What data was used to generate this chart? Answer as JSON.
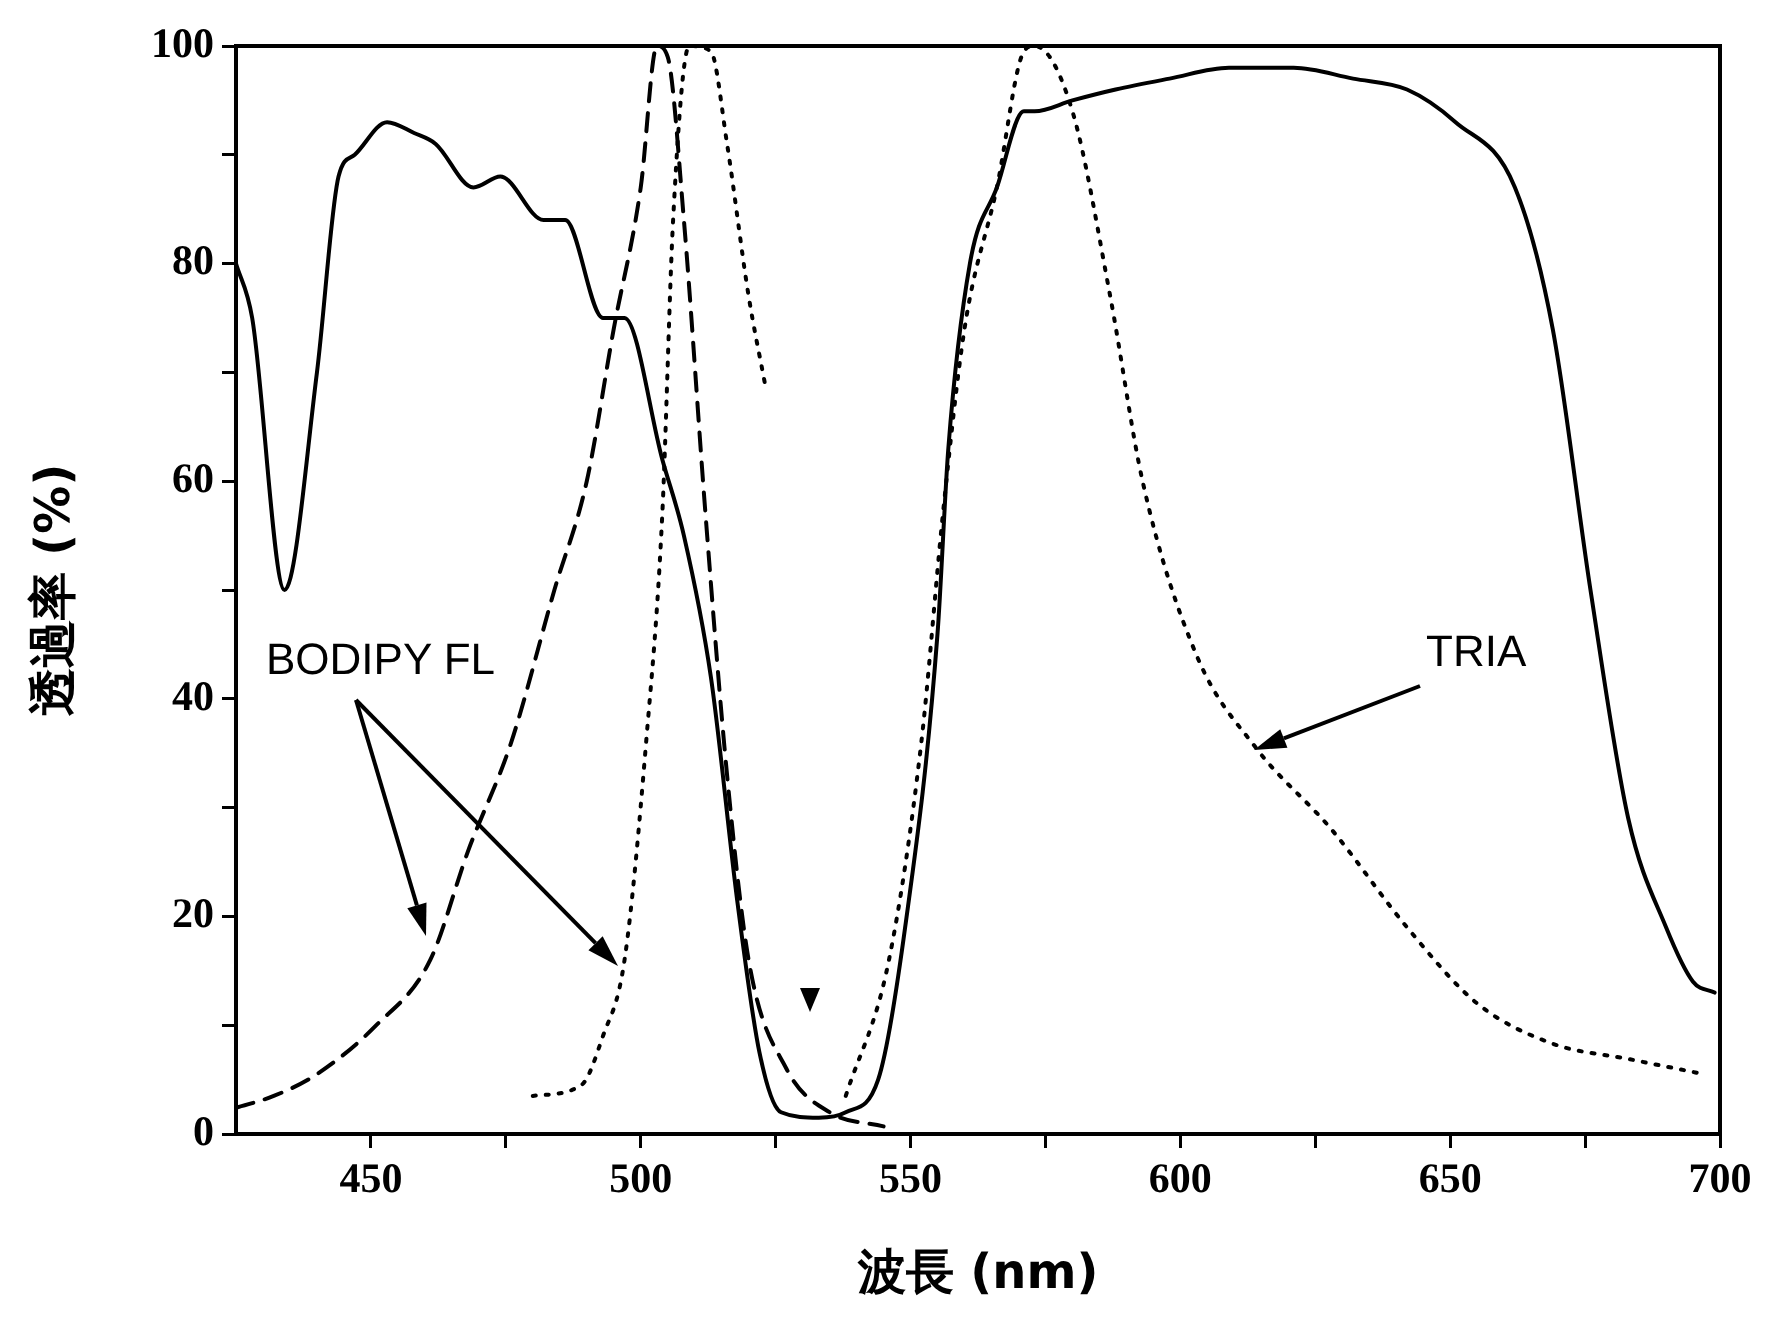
{
  "chart_data": {
    "type": "line",
    "xlabel": "波長 (nm)",
    "ylabel": "透過率 (%)",
    "xlim": [
      425,
      700
    ],
    "ylim": [
      0,
      100
    ],
    "xticks": [
      450,
      {
        "value": 475,
        "label": null
      },
      500,
      {
        "value": 525,
        "label": null
      },
      550,
      {
        "value": 575,
        "label": null
      },
      600,
      {
        "value": 625,
        "label": null
      },
      650,
      {
        "value": 675,
        "label": null
      },
      700
    ],
    "yticks": [
      0,
      {
        "value": 10,
        "label": null
      },
      20,
      {
        "value": 30,
        "label": null
      },
      40,
      {
        "value": 50,
        "label": null
      },
      60,
      {
        "value": 70,
        "label": null
      },
      80,
      {
        "value": 90,
        "label": null
      },
      100
    ],
    "grid": false,
    "legend": false,
    "marker": "none",
    "series": [
      {
        "color": "#000000",
        "line_style": "solid",
        "x": [
          425,
          428,
          434,
          440,
          444,
          447,
          453,
          458,
          462,
          469,
          474,
          482,
          486,
          493,
          497,
          504,
          508,
          513,
          518,
          522,
          526,
          533,
          538,
          544,
          549,
          555,
          557,
          561,
          566,
          571,
          573,
          580,
          588,
          598,
          609,
          621,
          632,
          642,
          651,
          662,
          669,
          676,
          683,
          690,
          695,
          699
        ],
        "values": [
          80,
          75,
          50,
          70,
          88,
          90,
          93,
          92,
          91,
          87,
          88,
          84,
          84,
          75,
          75,
          62,
          55,
          42,
          21,
          7.5,
          2,
          1.5,
          2,
          5,
          19,
          46,
          63,
          80,
          87,
          94,
          94,
          95,
          96,
          97,
          98,
          98,
          97,
          96,
          93,
          87,
          74,
          50,
          29,
          19,
          14,
          13
        ]
      },
      {
        "color": "#000000",
        "line_style": "dashed",
        "x": [
          425,
          432,
          440,
          451,
          461,
          468,
          476,
          484,
          490,
          495,
          500,
          503,
          505,
          508,
          512,
          516,
          520,
          527,
          535,
          545
        ],
        "values": [
          2.4,
          3.5,
          5.5,
          10,
          16,
          26,
          36,
          50,
          60,
          74,
          87,
          100,
          99,
          84,
          57,
          33,
          16,
          6,
          2,
          0.7
        ]
      },
      {
        "color": "#000000",
        "line_style": "dotted",
        "x": [
          480,
          489,
          493,
          497,
          501,
          504,
          506,
          509,
          513,
          516,
          520,
          523
        ],
        "values": [
          3.5,
          4.5,
          9,
          16,
          36,
          57,
          84,
          100,
          99.5,
          91,
          77,
          69
        ]
      },
      {
        "color": "#000000",
        "line_style": "dotted",
        "x": [
          538,
          546,
          552,
          556,
          560,
          566,
          571,
          573,
          580,
          587,
          593,
          603,
          614,
          628,
          642,
          655,
          669,
          683,
          697
        ],
        "values": [
          3.5,
          16,
          36,
          57,
          74,
          87,
          99.5,
          100,
          94,
          77,
          60,
          44,
          35.5,
          28,
          19,
          12,
          8.3,
          6.9,
          5.5
        ]
      }
    ],
    "annotations": [
      "BODIPY FL",
      "TRIA"
    ]
  }
}
